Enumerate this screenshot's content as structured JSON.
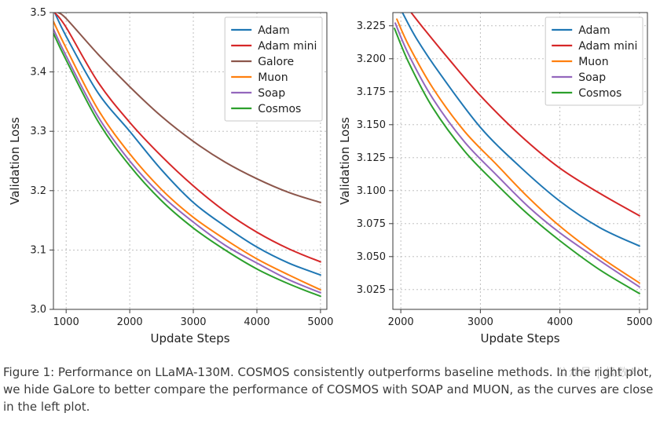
{
  "caption": "Figure 1: Performance on LLaMA-130M. COSMOS consistently outperforms baseline methods. In the right plot, we hide GaLore to better compare the performance of COSMOS with SOAP and MUON, as the curves are close in the left plot.",
  "left_chart": {
    "type": "line",
    "xlabel": "Update Steps",
    "ylabel": "Validation Loss",
    "label_fontsize": 15,
    "tick_fontsize": 13,
    "xlim": [
      800,
      5100
    ],
    "ylim": [
      3.0,
      3.5
    ],
    "xticks": [
      1000,
      2000,
      3000,
      4000,
      5000
    ],
    "yticks": [
      3.0,
      3.1,
      3.2,
      3.3,
      3.4,
      3.5
    ],
    "ytick_labels": [
      "3.0",
      "3.1",
      "3.2",
      "3.3",
      "3.4",
      "3.5"
    ],
    "background_color": "#ffffff",
    "grid_color": "#b8b8b8",
    "grid_dash": "2,3",
    "axis_color": "#3a3a3a",
    "line_width": 2.0,
    "legend": {
      "position": "upper-right",
      "frame_color": "#c9c9c9",
      "frame_fill": "#ffffff",
      "fontsize": 14
    },
    "series": [
      {
        "label": "Adam",
        "color": "#1f77b4",
        "data": [
          [
            820,
            3.5
          ],
          [
            1000,
            3.46
          ],
          [
            1500,
            3.365
          ],
          [
            2000,
            3.3
          ],
          [
            2500,
            3.235
          ],
          [
            3000,
            3.18
          ],
          [
            3500,
            3.14
          ],
          [
            4000,
            3.105
          ],
          [
            4500,
            3.078
          ],
          [
            5000,
            3.058
          ]
        ]
      },
      {
        "label": "Adam mini",
        "color": "#d62728",
        "data": [
          [
            820,
            3.5
          ],
          [
            1000,
            3.475
          ],
          [
            1500,
            3.383
          ],
          [
            2000,
            3.315
          ],
          [
            2500,
            3.258
          ],
          [
            3000,
            3.208
          ],
          [
            3500,
            3.165
          ],
          [
            4000,
            3.13
          ],
          [
            4500,
            3.102
          ],
          [
            5000,
            3.08
          ]
        ]
      },
      {
        "label": "Galore",
        "color": "#8c564b",
        "data": [
          [
            870,
            3.5
          ],
          [
            1000,
            3.49
          ],
          [
            1500,
            3.43
          ],
          [
            2000,
            3.375
          ],
          [
            2500,
            3.325
          ],
          [
            3000,
            3.283
          ],
          [
            3500,
            3.248
          ],
          [
            4000,
            3.22
          ],
          [
            4500,
            3.197
          ],
          [
            5000,
            3.18
          ]
        ]
      },
      {
        "label": "Muon",
        "color": "#ff7f0e",
        "data": [
          [
            800,
            3.485
          ],
          [
            1000,
            3.44
          ],
          [
            1500,
            3.337
          ],
          [
            2000,
            3.262
          ],
          [
            2500,
            3.202
          ],
          [
            3000,
            3.155
          ],
          [
            3500,
            3.118
          ],
          [
            4000,
            3.085
          ],
          [
            4500,
            3.058
          ],
          [
            5000,
            3.033
          ]
        ]
      },
      {
        "label": "Soap",
        "color": "#9467bd",
        "data": [
          [
            800,
            3.472
          ],
          [
            1000,
            3.427
          ],
          [
            1500,
            3.325
          ],
          [
            2000,
            3.25
          ],
          [
            2500,
            3.192
          ],
          [
            3000,
            3.147
          ],
          [
            3500,
            3.108
          ],
          [
            4000,
            3.078
          ],
          [
            4500,
            3.05
          ],
          [
            5000,
            3.028
          ]
        ]
      },
      {
        "label": "Cosmos",
        "color": "#2ca02c",
        "data": [
          [
            800,
            3.465
          ],
          [
            1000,
            3.42
          ],
          [
            1500,
            3.317
          ],
          [
            2000,
            3.242
          ],
          [
            2500,
            3.183
          ],
          [
            3000,
            3.137
          ],
          [
            3500,
            3.1
          ],
          [
            4000,
            3.068
          ],
          [
            4500,
            3.043
          ],
          [
            5000,
            3.022
          ]
        ]
      }
    ]
  },
  "right_chart": {
    "type": "line",
    "xlabel": "Update Steps",
    "ylabel": "Validation Loss",
    "label_fontsize": 15,
    "tick_fontsize": 13,
    "xlim": [
      1900,
      5100
    ],
    "ylim": [
      3.01,
      3.235
    ],
    "xticks": [
      2000,
      3000,
      4000,
      5000
    ],
    "yticks": [
      3.025,
      3.05,
      3.075,
      3.1,
      3.125,
      3.15,
      3.175,
      3.2,
      3.225
    ],
    "ytick_labels": [
      "3.025",
      "3.050",
      "3.075",
      "3.100",
      "3.125",
      "3.150",
      "3.175",
      "3.200",
      "3.225"
    ],
    "background_color": "#ffffff",
    "grid_color": "#b8b8b8",
    "grid_dash": "2,3",
    "axis_color": "#3a3a3a",
    "line_width": 2.0,
    "legend": {
      "position": "upper-right",
      "frame_color": "#c9c9c9",
      "frame_fill": "#ffffff",
      "fontsize": 14
    },
    "series": [
      {
        "label": "Adam",
        "color": "#1f77b4",
        "data": [
          [
            2020,
            3.235
          ],
          [
            2200,
            3.215
          ],
          [
            2500,
            3.188
          ],
          [
            3000,
            3.148
          ],
          [
            3500,
            3.118
          ],
          [
            4000,
            3.092
          ],
          [
            4500,
            3.072
          ],
          [
            5000,
            3.058
          ]
        ]
      },
      {
        "label": "Adam mini",
        "color": "#d62728",
        "data": [
          [
            2130,
            3.235
          ],
          [
            2300,
            3.222
          ],
          [
            2600,
            3.2
          ],
          [
            3000,
            3.172
          ],
          [
            3500,
            3.142
          ],
          [
            4000,
            3.117
          ],
          [
            4500,
            3.098
          ],
          [
            5000,
            3.081
          ]
        ]
      },
      {
        "label": "Muon",
        "color": "#ff7f0e",
        "data": [
          [
            1950,
            3.23
          ],
          [
            2100,
            3.21
          ],
          [
            2400,
            3.178
          ],
          [
            2800,
            3.145
          ],
          [
            3200,
            3.12
          ],
          [
            3600,
            3.095
          ],
          [
            4000,
            3.073
          ],
          [
            4500,
            3.05
          ],
          [
            5000,
            3.03
          ]
        ]
      },
      {
        "label": "Soap",
        "color": "#9467bd",
        "data": [
          [
            1930,
            3.227
          ],
          [
            2100,
            3.203
          ],
          [
            2400,
            3.17
          ],
          [
            2800,
            3.137
          ],
          [
            3200,
            3.112
          ],
          [
            3600,
            3.088
          ],
          [
            4000,
            3.068
          ],
          [
            4500,
            3.047
          ],
          [
            5000,
            3.027
          ]
        ]
      },
      {
        "label": "Cosmos",
        "color": "#2ca02c",
        "data": [
          [
            1920,
            3.223
          ],
          [
            2100,
            3.197
          ],
          [
            2400,
            3.163
          ],
          [
            2800,
            3.13
          ],
          [
            3200,
            3.105
          ],
          [
            3600,
            3.082
          ],
          [
            4000,
            3.062
          ],
          [
            4500,
            3.04
          ],
          [
            5000,
            3.022
          ]
        ]
      }
    ]
  }
}
